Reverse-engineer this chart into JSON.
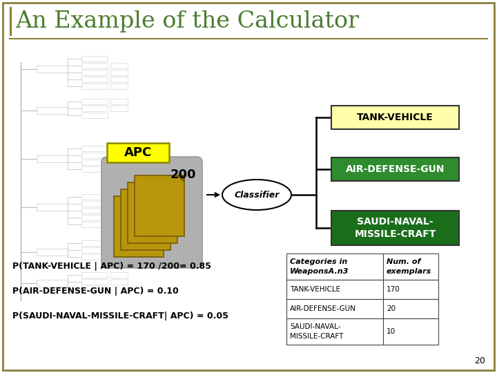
{
  "title": "An Example of the Calculator",
  "title_color": "#4a7c2f",
  "border_color": "#8b7d3a",
  "slide_bg": "#ffffff",
  "apc_label": "APC",
  "apc_box_color": "#ffff00",
  "count_label": "200",
  "classifier_label": "Classifier",
  "category_colors": [
    "#ffffaa",
    "#2e8b2e",
    "#1a6e1a"
  ],
  "category_text_colors": [
    "#000000",
    "#ffffff",
    "#ffffff"
  ],
  "cat_labels": [
    "TANK-VEHICLE",
    "AIR-DEFENSE-GUN",
    "SAUDI-NAVAL-\nMISSILE-CRAFT"
  ],
  "prob_lines": [
    "P(TANK-VEHICLE | APC) = 170 /200= 0.85",
    "P(AIR-DEFENSE-GUN | APC) = 0.10",
    "P(SAUDI-NAVAL-MISSILE-CRAFT| APC) = 0.05"
  ],
  "table_header": [
    "Categories in\nWeaponsA.n3",
    "Num. of\nexemplars"
  ],
  "table_rows": [
    [
      "TANK-VEHICLE",
      "170"
    ],
    [
      "AIR-DEFENSE-GUN",
      "20"
    ],
    [
      "SAUDI-NAVAL-\nMISSILE-CRAFT",
      "10"
    ]
  ],
  "page_number": "20",
  "gold_color": "#b8960c",
  "gold_edge": "#7a6008",
  "stack_bg": "#b0b0b0"
}
